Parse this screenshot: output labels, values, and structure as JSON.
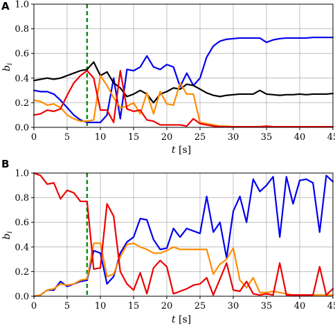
{
  "chart_data": [
    {
      "type": "line",
      "panel_label": "A",
      "xlabel_var": "t",
      "xlabel_unit": " [s]",
      "ylabel_var": "b",
      "ylabel_sub": "i",
      "xlim": [
        0,
        45
      ],
      "ylim": [
        0,
        1.0
      ],
      "xticks": [
        0,
        5,
        10,
        15,
        20,
        25,
        30,
        35,
        40,
        45
      ],
      "yticks": [
        0.0,
        0.2,
        0.4,
        0.6,
        0.8,
        1.0
      ],
      "ytick_labels": [
        "0.0",
        "0.2",
        "0.4",
        "0.6",
        "0.8",
        "1.0"
      ],
      "grid": true,
      "vline": {
        "x": 8,
        "color": "#109010",
        "style": "dashed"
      },
      "series": [
        {
          "color": "#0000ee",
          "x": [
            0,
            1,
            2,
            3,
            4,
            5,
            6,
            7,
            8,
            9,
            10,
            11,
            12,
            13,
            14,
            15,
            16,
            17,
            18,
            19,
            20,
            21,
            22,
            23,
            24,
            25,
            26,
            27,
            28,
            29,
            30,
            31,
            32,
            33,
            34,
            35,
            36,
            37,
            38,
            39,
            40,
            41,
            42,
            43,
            44,
            45
          ],
          "values": [
            0.3,
            0.29,
            0.29,
            0.27,
            0.22,
            0.16,
            0.1,
            0.06,
            0.04,
            0.04,
            0.04,
            0.1,
            0.4,
            0.07,
            0.47,
            0.46,
            0.49,
            0.58,
            0.49,
            0.47,
            0.51,
            0.49,
            0.33,
            0.44,
            0.34,
            0.4,
            0.57,
            0.66,
            0.7,
            0.715,
            0.72,
            0.725,
            0.725,
            0.725,
            0.725,
            0.69,
            0.71,
            0.72,
            0.725,
            0.725,
            0.725,
            0.725,
            0.73,
            0.73,
            0.73,
            0.73
          ]
        },
        {
          "color": "#000000",
          "x": [
            0,
            1,
            2,
            3,
            4,
            5,
            6,
            7,
            8,
            9,
            10,
            11,
            12,
            13,
            14,
            15,
            16,
            17,
            18,
            19,
            20,
            21,
            22,
            23,
            24,
            25,
            26,
            27,
            28,
            29,
            30,
            31,
            32,
            33,
            34,
            35,
            36,
            37,
            38,
            39,
            40,
            41,
            42,
            43,
            44,
            45
          ],
          "values": [
            0.38,
            0.39,
            0.4,
            0.39,
            0.4,
            0.42,
            0.44,
            0.46,
            0.47,
            0.53,
            0.42,
            0.45,
            0.36,
            0.32,
            0.25,
            0.27,
            0.3,
            0.27,
            0.2,
            0.27,
            0.29,
            0.32,
            0.31,
            0.35,
            0.34,
            0.31,
            0.28,
            0.26,
            0.25,
            0.26,
            0.265,
            0.27,
            0.27,
            0.27,
            0.3,
            0.27,
            0.265,
            0.26,
            0.265,
            0.265,
            0.27,
            0.265,
            0.27,
            0.27,
            0.27,
            0.275
          ]
        },
        {
          "color": "#ff8c00",
          "x": [
            0,
            1,
            2,
            3,
            4,
            5,
            6,
            7,
            8,
            9,
            10,
            11,
            12,
            13,
            14,
            15,
            16,
            17,
            18,
            19,
            20,
            21,
            22,
            23,
            24,
            25,
            26,
            27,
            28,
            29,
            30,
            31,
            32,
            33,
            34,
            35,
            36,
            37,
            38,
            39,
            40,
            41,
            42,
            43,
            44,
            45
          ],
          "values": [
            0.22,
            0.21,
            0.18,
            0.19,
            0.16,
            0.1,
            0.07,
            0.05,
            0.05,
            0.06,
            0.42,
            0.34,
            0.24,
            0.16,
            0.17,
            0.2,
            0.11,
            0.28,
            0.11,
            0.29,
            0.19,
            0.18,
            0.36,
            0.27,
            0.27,
            0.04,
            0.03,
            0.02,
            0.01,
            0.01,
            0.005,
            0.005,
            0.005,
            0.005,
            0.005,
            0.005,
            0.005,
            0.005,
            0.005,
            0.005,
            0.005,
            0.005,
            0.005,
            0.005,
            0.005,
            0.005
          ]
        },
        {
          "color": "#ee0000",
          "x": [
            0,
            1,
            2,
            3,
            4,
            5,
            6,
            7,
            8,
            9,
            10,
            11,
            12,
            13,
            14,
            15,
            16,
            17,
            18,
            19,
            20,
            21,
            22,
            23,
            24,
            25,
            26,
            27,
            28,
            29,
            30,
            31,
            32,
            33,
            34,
            35,
            36,
            37,
            38,
            39,
            40,
            41,
            42,
            43,
            44,
            45
          ],
          "values": [
            0.1,
            0.11,
            0.14,
            0.13,
            0.15,
            0.26,
            0.36,
            0.42,
            0.46,
            0.4,
            0.14,
            0.14,
            0.04,
            0.46,
            0.15,
            0.13,
            0.14,
            0.06,
            0.05,
            0.02,
            0.02,
            0.02,
            0.02,
            0.01,
            0.07,
            0.03,
            0.02,
            0.01,
            0.005,
            0.005,
            0.005,
            0.005,
            0.005,
            0.005,
            0.005,
            0.01,
            0.005,
            0.005,
            0.005,
            0.005,
            0.005,
            0.005,
            0.005,
            0.005,
            0.005,
            0.005
          ]
        }
      ]
    },
    {
      "type": "line",
      "panel_label": "B",
      "xlabel_var": "t",
      "xlabel_unit": " [s]",
      "ylabel_var": "b",
      "ylabel_sub": "i",
      "xlim": [
        0,
        45
      ],
      "ylim": [
        0,
        1.0
      ],
      "xticks": [
        0,
        5,
        10,
        15,
        20,
        25,
        30,
        35,
        40,
        45
      ],
      "yticks": [
        0.0,
        0.2,
        0.4,
        0.6,
        0.8,
        1.0
      ],
      "ytick_labels": [
        "0.0",
        "0.2",
        "0.4",
        "0.6",
        "0.8",
        "1.0"
      ],
      "grid": true,
      "vline": {
        "x": 8,
        "color": "#109010",
        "style": "dashed"
      },
      "series": [
        {
          "color": "#0000ee",
          "x": [
            0,
            1,
            2,
            3,
            4,
            5,
            6,
            7,
            8,
            9,
            10,
            11,
            12,
            13,
            14,
            15,
            16,
            17,
            18,
            19,
            20,
            21,
            22,
            23,
            24,
            25,
            26,
            27,
            28,
            29,
            30,
            31,
            32,
            33,
            34,
            35,
            36,
            37,
            38,
            39,
            40,
            41,
            42,
            43,
            44,
            45
          ],
          "values": [
            0.0,
            0.01,
            0.05,
            0.05,
            0.12,
            0.08,
            0.1,
            0.12,
            0.13,
            0.37,
            0.35,
            0.1,
            0.16,
            0.35,
            0.44,
            0.48,
            0.63,
            0.62,
            0.46,
            0.38,
            0.39,
            0.55,
            0.48,
            0.55,
            0.53,
            0.51,
            0.81,
            0.52,
            0.6,
            0.31,
            0.69,
            0.81,
            0.6,
            0.95,
            0.85,
            0.9,
            0.97,
            0.48,
            0.97,
            0.75,
            0.94,
            0.95,
            0.92,
            0.52,
            0.98,
            0.93
          ]
        },
        {
          "color": "#ff8c00",
          "x": [
            0,
            1,
            2,
            3,
            4,
            5,
            6,
            7,
            8,
            9,
            10,
            11,
            12,
            13,
            14,
            15,
            16,
            17,
            18,
            19,
            20,
            21,
            22,
            23,
            24,
            25,
            26,
            27,
            28,
            29,
            30,
            31,
            32,
            33,
            34,
            35,
            36,
            37,
            38,
            39,
            40,
            41,
            42,
            43,
            44,
            45
          ],
          "values": [
            0.0,
            0.01,
            0.05,
            0.06,
            0.1,
            0.09,
            0.1,
            0.13,
            0.14,
            0.43,
            0.43,
            0.16,
            0.18,
            0.32,
            0.42,
            0.43,
            0.4,
            0.38,
            0.35,
            0.35,
            0.37,
            0.4,
            0.38,
            0.38,
            0.38,
            0.38,
            0.38,
            0.18,
            0.26,
            0.3,
            0.39,
            0.13,
            0.07,
            0.15,
            0.03,
            0.03,
            0.04,
            0.03,
            0.02,
            0.01,
            0.01,
            0.01,
            0.01,
            0.01,
            0.01,
            0.01
          ]
        },
        {
          "color": "#ee0000",
          "x": [
            0,
            1,
            2,
            3,
            4,
            5,
            6,
            7,
            8,
            9,
            10,
            11,
            12,
            13,
            14,
            15,
            16,
            17,
            18,
            19,
            20,
            21,
            22,
            23,
            24,
            25,
            26,
            27,
            28,
            29,
            30,
            31,
            32,
            33,
            34,
            35,
            36,
            37,
            38,
            39,
            40,
            41,
            42,
            43,
            44,
            45
          ],
          "values": [
            1.0,
            0.98,
            0.91,
            0.92,
            0.79,
            0.86,
            0.84,
            0.77,
            0.77,
            0.22,
            0.23,
            0.75,
            0.65,
            0.2,
            0.1,
            0.05,
            0.19,
            0.02,
            0.23,
            0.29,
            0.24,
            0.02,
            0.04,
            0.06,
            0.09,
            0.1,
            0.15,
            0.01,
            0.14,
            0.27,
            0.05,
            0.04,
            0.12,
            0.02,
            0.01,
            0.02,
            0.01,
            0.27,
            0.01,
            0.01,
            0.01,
            0.01,
            0.01,
            0.24,
            0.01,
            0.06
          ]
        }
      ]
    }
  ]
}
